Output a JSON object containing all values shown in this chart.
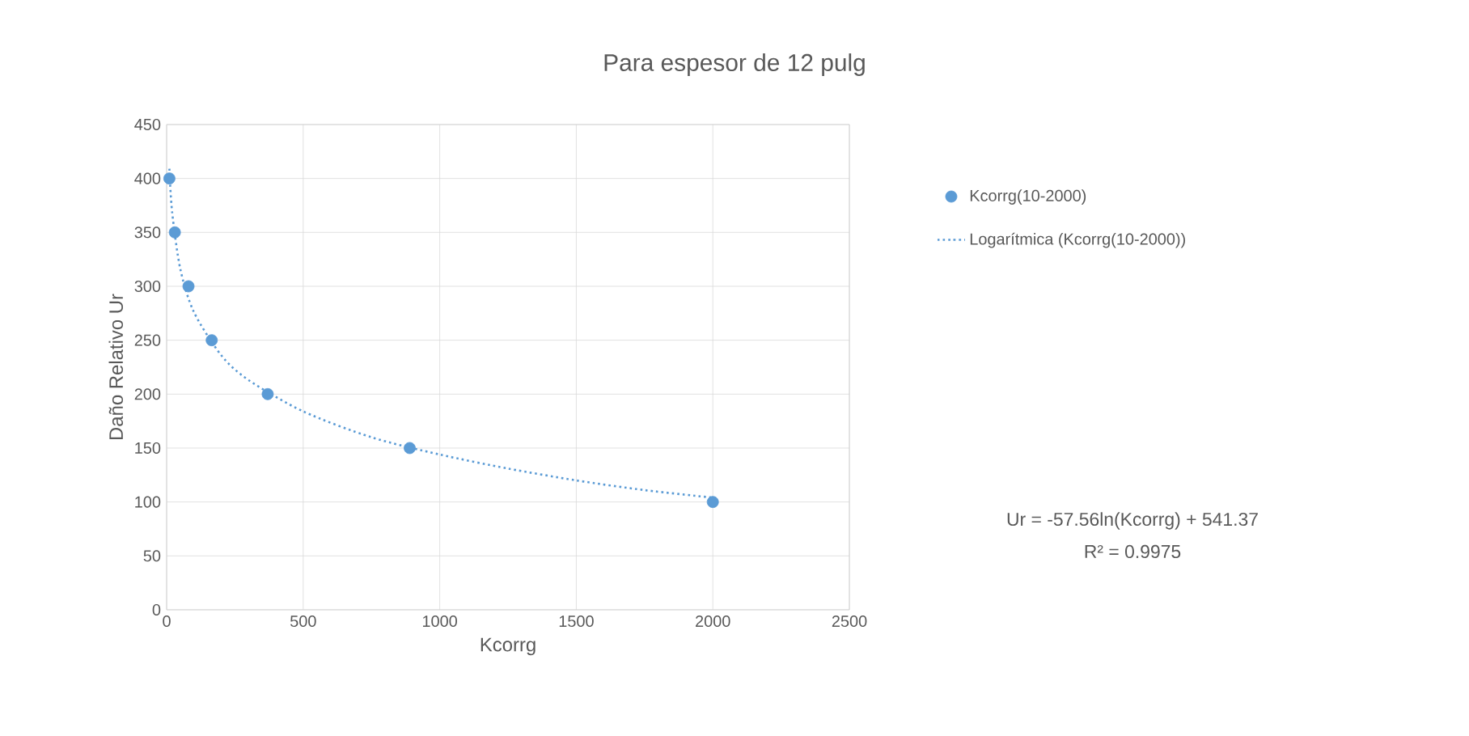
{
  "chart_data": {
    "type": "scatter",
    "title": "Para espesor de 12 pulg",
    "xlabel": "Kcorrg",
    "ylabel": "Daño Relativo Ur",
    "xlim": [
      0,
      2500
    ],
    "xticks": [
      0,
      500,
      1000,
      1500,
      2000,
      2500
    ],
    "ylim": [
      0,
      450
    ],
    "yticks": [
      0,
      50,
      100,
      150,
      200,
      250,
      300,
      350,
      400,
      450
    ],
    "grid": true,
    "legend": "right",
    "marker": "circle",
    "series": [
      {
        "name": "Kcorrg(10-2000)",
        "color": "#5b9bd5",
        "x": [
          10,
          30,
          80,
          165,
          370,
          890,
          2000
        ],
        "values": [
          400,
          350,
          300,
          250,
          200,
          150,
          100
        ]
      },
      {
        "name": "Logarítmica (Kcorrg(10-2000))",
        "type": "line",
        "line_style": "dotted",
        "marker": "none",
        "color": "#5b9bd5",
        "x": [
          10,
          20,
          50,
          100,
          200,
          300,
          500,
          750,
          1000,
          1250,
          1500,
          1750,
          2000
        ],
        "values": [
          409,
          369,
          316,
          276,
          236,
          213,
          184,
          160,
          144,
          131,
          120,
          111,
          104
        ]
      }
    ],
    "annotations": [
      "Ur = -57.56ln(Kcorrg) + 541.37",
      "R² = 0.9975"
    ]
  }
}
